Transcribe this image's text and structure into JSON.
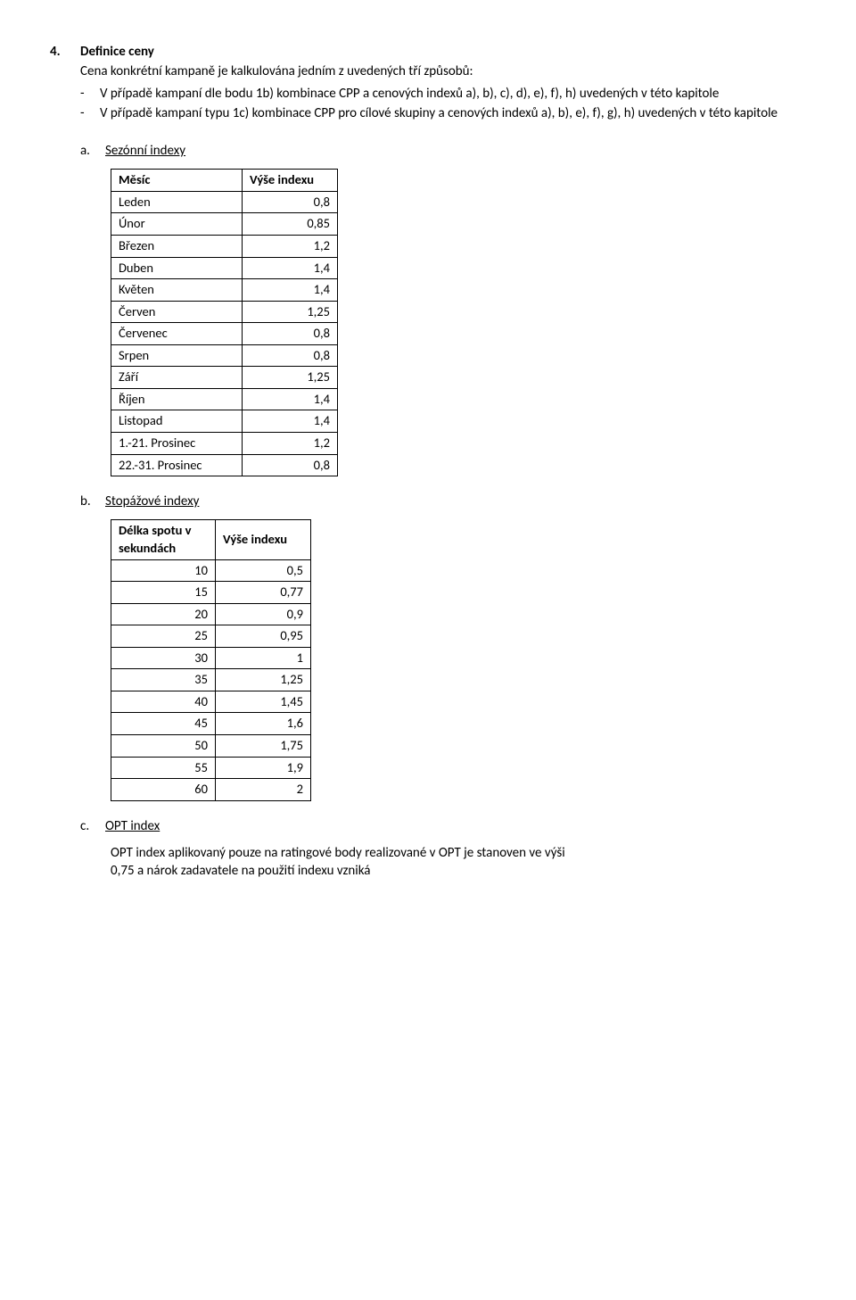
{
  "section": {
    "number": "4.",
    "title": "Definice ceny",
    "intro": "Cena konkrétní kampaně je kalkulována jedním z uvedených tří způsobů:",
    "bullets": [
      "V případě kampaní dle bodu 1b) kombinace CPP a cenových indexů a), b), c), d), e), f), h) uvedených v této kapitole",
      "V případě kampaní typu 1c) kombinace CPP pro cílové skupiny a cenových indexů a), b), e), f), g), h) uvedených v této kapitole"
    ]
  },
  "sezonni": {
    "letter": "a.",
    "label": "Sezónní indexy",
    "header_month": "Měsíc",
    "header_value": "Výše indexu",
    "rows": [
      {
        "m": "Leden",
        "v": "0,8"
      },
      {
        "m": "Únor",
        "v": "0,85"
      },
      {
        "m": "Březen",
        "v": "1,2"
      },
      {
        "m": "Duben",
        "v": "1,4"
      },
      {
        "m": "Květen",
        "v": "1,4"
      },
      {
        "m": "Červen",
        "v": "1,25"
      },
      {
        "m": "Červenec",
        "v": "0,8"
      },
      {
        "m": "Srpen",
        "v": "0,8"
      },
      {
        "m": "Září",
        "v": "1,25"
      },
      {
        "m": "Říjen",
        "v": "1,4"
      },
      {
        "m": "Listopad",
        "v": "1,4"
      },
      {
        "m": "1.-21. Prosinec",
        "v": "1,2"
      },
      {
        "m": "22.-31. Prosinec",
        "v": "0,8"
      }
    ]
  },
  "stopazove": {
    "letter": "b.",
    "label": "Stopážové indexy",
    "header_len": "Délka spotu v sekundách",
    "header_value": "Výše indexu",
    "rows": [
      {
        "s": "10",
        "v": "0,5"
      },
      {
        "s": "15",
        "v": "0,77"
      },
      {
        "s": "20",
        "v": "0,9"
      },
      {
        "s": "25",
        "v": "0,95"
      },
      {
        "s": "30",
        "v": "1"
      },
      {
        "s": "35",
        "v": "1,25"
      },
      {
        "s": "40",
        "v": "1,45"
      },
      {
        "s": "45",
        "v": "1,6"
      },
      {
        "s": "50",
        "v": "1,75"
      },
      {
        "s": "55",
        "v": "1,9"
      },
      {
        "s": "60",
        "v": "2"
      }
    ]
  },
  "opt": {
    "letter": "c.",
    "label": "OPT index",
    "text_line1": "OPT index aplikovaný pouze na ratingové body realizované v OPT je stanoven ve výši",
    "text_line2": "0,75 a nárok zadavatele na použití indexu vzniká"
  }
}
